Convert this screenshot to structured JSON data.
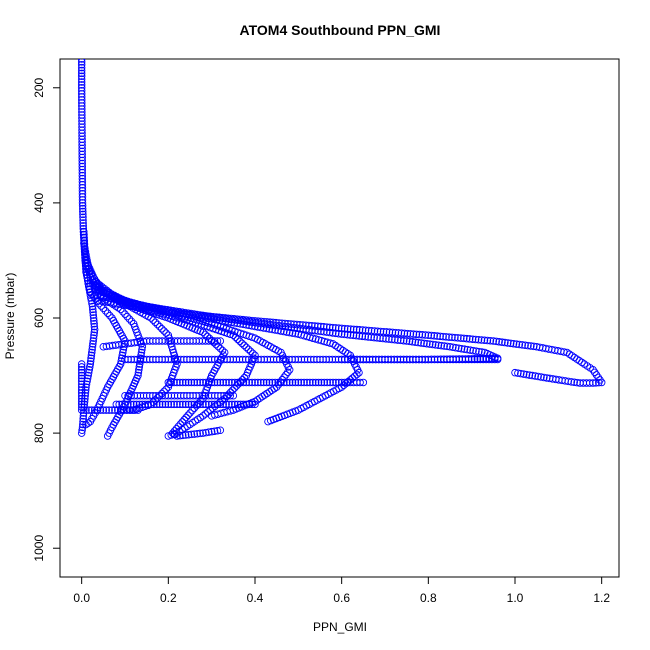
{
  "chart_data": {
    "type": "scatter",
    "title": "ATOM4 Southbound PPN_GMI",
    "xlabel": "PPN_GMI",
    "ylabel": "Pressure (mbar)",
    "xlim": [
      -0.05,
      1.24
    ],
    "ylim": [
      1050,
      150
    ],
    "y_reversed": true,
    "xticks": [
      0.0,
      0.2,
      0.4,
      0.6,
      0.8,
      1.0,
      1.2
    ],
    "xtick_labels": [
      "0.0",
      "0.2",
      "0.4",
      "0.6",
      "0.8",
      "1.0",
      "1.2"
    ],
    "yticks": [
      200,
      400,
      600,
      800,
      1000
    ],
    "ytick_labels": [
      "200",
      "400",
      "600",
      "800",
      "1000"
    ],
    "marker": "open-circle",
    "color": "#0000ff",
    "grid": false,
    "legend": "none",
    "series": [
      {
        "x": [
          0.0,
          0.0,
          0.001,
          0.002,
          0.004,
          0.008,
          0.015,
          0.025,
          0.03,
          0.02,
          0.01,
          0.005,
          0.002,
          0.0
        ],
        "y": [
          150,
          200,
          300,
          400,
          450,
          500,
          540,
          580,
          620,
          680,
          720,
          760,
          790,
          800
        ]
      },
      {
        "x": [
          0.005,
          0.01,
          0.02,
          0.04,
          0.07,
          0.1,
          0.09,
          0.06,
          0.035,
          0.02,
          0.01
        ],
        "y": [
          450,
          520,
          555,
          575,
          600,
          640,
          680,
          720,
          760,
          780,
          785
        ]
      },
      {
        "x": [
          0.005,
          0.02,
          0.05,
          0.09,
          0.12,
          0.14,
          0.13,
          0.1,
          0.07,
          0.06
        ],
        "y": [
          470,
          530,
          565,
          585,
          610,
          650,
          700,
          750,
          790,
          805
        ]
      },
      {
        "x": [
          0.01,
          0.04,
          0.1,
          0.16,
          0.2,
          0.22,
          0.2,
          0.16,
          0.12,
          0.09
        ],
        "y": [
          500,
          550,
          575,
          600,
          630,
          680,
          720,
          750,
          760,
          760
        ]
      },
      {
        "x": [
          0.01,
          0.05,
          0.12,
          0.2,
          0.28,
          0.33,
          0.3,
          0.28,
          0.25,
          0.21,
          0.22,
          0.28,
          0.32
        ],
        "y": [
          510,
          555,
          580,
          600,
          625,
          660,
          700,
          740,
          765,
          800,
          805,
          800,
          795
        ]
      },
      {
        "x": [
          0.02,
          0.08,
          0.15,
          0.25,
          0.35,
          0.4,
          0.38,
          0.33,
          0.28,
          0.22,
          0.2
        ],
        "y": [
          530,
          565,
          585,
          605,
          630,
          665,
          700,
          740,
          770,
          800,
          805
        ]
      },
      {
        "x": [
          0.02,
          0.1,
          0.2,
          0.3,
          0.4,
          0.46,
          0.48,
          0.45,
          0.4,
          0.35,
          0.3
        ],
        "y": [
          540,
          570,
          590,
          610,
          635,
          660,
          690,
          720,
          745,
          760,
          770
        ]
      },
      {
        "x": [
          0.03,
          0.12,
          0.25,
          0.38,
          0.5,
          0.58,
          0.62,
          0.64,
          0.6,
          0.55,
          0.5,
          0.43
        ],
        "y": [
          550,
          575,
          595,
          612,
          628,
          645,
          665,
          695,
          720,
          740,
          760,
          780
        ]
      },
      {
        "x": [
          0.03,
          0.15,
          0.3,
          0.45,
          0.6,
          0.75,
          0.85,
          0.93,
          0.96,
          0.9,
          0.8,
          0.7,
          0.6
        ],
        "y": [
          560,
          580,
          598,
          613,
          628,
          640,
          650,
          660,
          670,
          671,
          672,
          672,
          672
        ]
      },
      {
        "x": [
          0.04,
          0.2,
          0.4,
          0.6,
          0.8,
          0.95,
          1.05,
          1.12,
          1.16,
          1.18,
          1.2,
          1.18,
          1.15,
          1.13,
          1.08,
          1.0
        ],
        "y": [
          570,
          590,
          605,
          618,
          630,
          640,
          650,
          660,
          680,
          690,
          712,
          713,
          713,
          711,
          705,
          695
        ]
      },
      {
        "x": [
          0.1,
          0.2,
          0.3,
          0.4,
          0.5,
          0.6,
          0.7,
          0.8,
          0.9,
          0.96
        ],
        "y": [
          672,
          672,
          672,
          672,
          672,
          672,
          672,
          672,
          672,
          672
        ]
      },
      {
        "x": [
          0.2,
          0.26,
          0.32,
          0.38,
          0.44,
          0.5,
          0.56,
          0.62,
          0.65
        ],
        "y": [
          712,
          712,
          712,
          712,
          712,
          712,
          712,
          712,
          712
        ]
      },
      {
        "x": [
          0.05,
          0.1,
          0.15,
          0.2,
          0.25,
          0.3,
          0.32
        ],
        "y": [
          650,
          645,
          640,
          640,
          640,
          640,
          640
        ]
      },
      {
        "x": [
          0.1,
          0.15,
          0.2,
          0.25,
          0.3,
          0.35
        ],
        "y": [
          735,
          735,
          735,
          735,
          735,
          735
        ]
      },
      {
        "x": [
          0.08,
          0.12,
          0.16,
          0.2,
          0.24,
          0.28,
          0.32,
          0.36,
          0.4
        ],
        "y": [
          750,
          750,
          750,
          750,
          750,
          750,
          750,
          750,
          750
        ]
      },
      {
        "x": [
          0.01,
          0.03,
          0.05,
          0.07,
          0.09,
          0.11,
          0.13
        ],
        "y": [
          760,
          760,
          760,
          760,
          760,
          760,
          760
        ]
      },
      {
        "x": [
          0.0,
          0.0,
          0.0,
          0.0
        ],
        "y": [
          680,
          700,
          730,
          760
        ]
      }
    ]
  }
}
